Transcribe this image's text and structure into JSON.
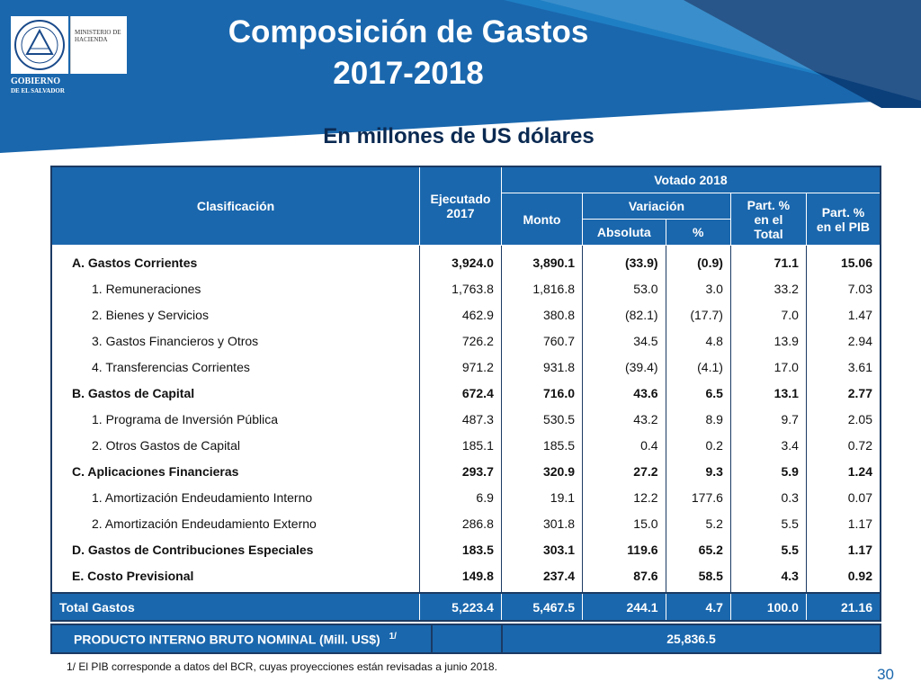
{
  "header": {
    "title_line1": "Composición de Gastos",
    "title_line2": "2017-2018",
    "subtitle": "En millones de US dólares",
    "ministry_text": "MINISTERIO DE HACIENDA",
    "gov_line1": "GOBIERNO",
    "gov_line2": "DE EL SALVADOR",
    "colors": {
      "banner": "#1a67ad",
      "banner_dark": "#0b3f7a",
      "table_header": "#1a67ad",
      "text_dark": "#0b2a52"
    }
  },
  "table": {
    "headers": {
      "clasificacion": "Clasificación",
      "ejecutado": "Ejecutado 2017",
      "votado": "Votado 2018",
      "monto": "Monto",
      "variacion": "Variación",
      "absoluta": "Absoluta",
      "pct": "%",
      "part_total": "Part. % en el Total",
      "part_pib": "Part. % en el PIB"
    },
    "rows": [
      {
        "label": "A. Gastos Corrientes",
        "ejec": "3,924.0",
        "monto": "3,890.1",
        "abs": "(33.9)",
        "pct": "(0.9)",
        "part_total": "71.1",
        "part_pib": "15.06"
      },
      {
        "label": "1. Remuneraciones",
        "ejec": "1,763.8",
        "monto": "1,816.8",
        "abs": "53.0",
        "pct": "3.0",
        "part_total": "33.2",
        "part_pib": "7.03"
      },
      {
        "label": "2. Bienes y Servicios",
        "ejec": "462.9",
        "monto": "380.8",
        "abs": "(82.1)",
        "pct": "(17.7)",
        "part_total": "7.0",
        "part_pib": "1.47"
      },
      {
        "label": "3. Gastos Financieros y Otros",
        "ejec": "726.2",
        "monto": "760.7",
        "abs": "34.5",
        "pct": "4.8",
        "part_total": "13.9",
        "part_pib": "2.94"
      },
      {
        "label": "4. Transferencias Corrientes",
        "ejec": "971.2",
        "monto": "931.8",
        "abs": "(39.4)",
        "pct": "(4.1)",
        "part_total": "17.0",
        "part_pib": "3.61"
      },
      {
        "label": "B. Gastos de Capital",
        "ejec": "672.4",
        "monto": "716.0",
        "abs": "43.6",
        "pct": "6.5",
        "part_total": "13.1",
        "part_pib": "2.77"
      },
      {
        "label": "1. Programa de Inversión Pública",
        "ejec": "487.3",
        "monto": "530.5",
        "abs": "43.2",
        "pct": "8.9",
        "part_total": "9.7",
        "part_pib": "2.05"
      },
      {
        "label": "2. Otros Gastos de Capital",
        "ejec": "185.1",
        "monto": "185.5",
        "abs": "0.4",
        "pct": "0.2",
        "part_total": "3.4",
        "part_pib": "0.72"
      },
      {
        "label": "C. Aplicaciones Financieras",
        "ejec": "293.7",
        "monto": "320.9",
        "abs": "27.2",
        "pct": "9.3",
        "part_total": "5.9",
        "part_pib": "1.24"
      },
      {
        "label": "1. Amortización Endeudamiento Interno",
        "ejec": "6.9",
        "monto": "19.1",
        "abs": "12.2",
        "pct": "177.6",
        "part_total": "0.3",
        "part_pib": "0.07"
      },
      {
        "label": "2. Amortización Endeudamiento Externo",
        "ejec": "286.8",
        "monto": "301.8",
        "abs": "15.0",
        "pct": "5.2",
        "part_total": "5.5",
        "part_pib": "1.17"
      },
      {
        "label": "D. Gastos de Contribuciones Especiales",
        "ejec": "183.5",
        "monto": "303.1",
        "abs": "119.6",
        "pct": "65.2",
        "part_total": "5.5",
        "part_pib": "1.17"
      },
      {
        "label": "E. Costo Previsional",
        "ejec": "149.8",
        "monto": "237.4",
        "abs": "87.6",
        "pct": "58.5",
        "part_total": "4.3",
        "part_pib": "0.92"
      }
    ],
    "total": {
      "label": "Total Gastos",
      "ejec": "5,223.4",
      "monto": "5,467.5",
      "abs": "244.1",
      "pct": "4.7",
      "part_total": "100.0",
      "part_pib": "21.16"
    },
    "pib": {
      "label": "PRODUCTO INTERNO BRUTO NOMINAL (Mill. US$)",
      "sup": "1/",
      "value": "25,836.5"
    }
  },
  "footnote": "1/ El PIB corresponde a datos del BCR, cuyas proyecciones están revisadas a junio 2018.",
  "page_number": "30"
}
